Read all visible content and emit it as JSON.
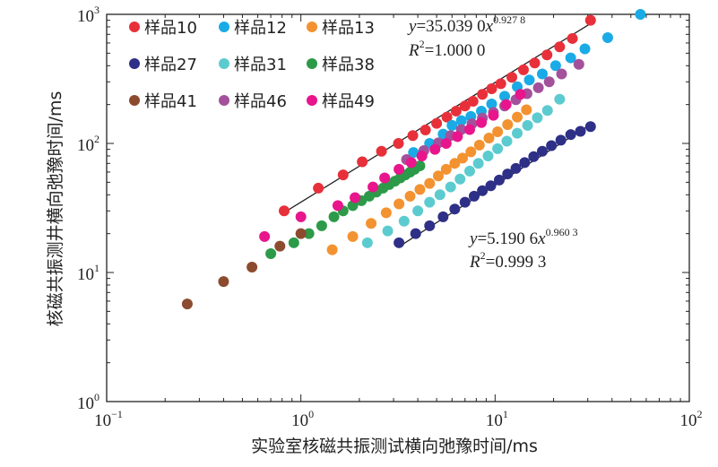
{
  "chart_data": {
    "type": "scatter",
    "xscale": "log",
    "yscale": "log",
    "xlim": [
      0.1,
      100
    ],
    "ylim": [
      1,
      1000
    ],
    "xlabel": "实验室核磁共振测试横向弛豫时间/ms",
    "ylabel": "核磁共振测井横向弛豫时间/ms",
    "x_ticks": [
      {
        "value": 0.1,
        "base": "10",
        "exp": "−1"
      },
      {
        "value": 1,
        "base": "10",
        "exp": "0"
      },
      {
        "value": 10,
        "base": "10",
        "exp": "1"
      },
      {
        "value": 100,
        "base": "10",
        "exp": "2"
      }
    ],
    "y_ticks": [
      {
        "value": 1,
        "base": "10",
        "exp": "0"
      },
      {
        "value": 10,
        "base": "10",
        "exp": "1"
      },
      {
        "value": 100,
        "base": "10",
        "exp": "2"
      },
      {
        "value": 1000,
        "base": "10",
        "exp": "3"
      }
    ],
    "legend": {
      "position": "top-left"
    },
    "series": [
      {
        "name": "样品10",
        "color": "#e8303a",
        "x": [
          0.82,
          1.23,
          1.65,
          2.07,
          2.6,
          3.18,
          3.77,
          4.38,
          5.0,
          5.65,
          6.3,
          7.0,
          7.7,
          8.6,
          9.6,
          10.7,
          12.2,
          14.0,
          16.0,
          18.5,
          21.5,
          25.0,
          31.0
        ],
        "y": [
          30,
          45,
          57,
          72,
          87,
          100,
          115,
          127,
          143,
          160,
          178,
          195,
          212,
          240,
          265,
          290,
          325,
          372,
          420,
          485,
          560,
          650,
          900
        ]
      },
      {
        "name": "样品12",
        "color": "#1aabe6",
        "x": [
          3.8,
          4.6,
          5.4,
          6.0,
          6.7,
          7.5,
          8.5,
          9.6,
          11.2,
          13.0,
          15.0,
          17.5,
          20.5,
          24.5,
          29.0,
          38.0,
          56.0
        ],
        "y": [
          85,
          100,
          118,
          138,
          150,
          162,
          178,
          202,
          232,
          275,
          310,
          345,
          400,
          460,
          540,
          660,
          1000
        ]
      },
      {
        "name": "样品13",
        "color": "#f39230",
        "x": [
          1.45,
          1.85,
          2.3,
          2.75,
          3.2,
          3.65,
          4.1,
          4.6,
          5.1,
          5.6,
          6.2,
          6.8,
          7.5,
          8.3,
          9.3,
          10.3,
          11.6,
          13.0,
          14.5
        ],
        "y": [
          15,
          19,
          24,
          29,
          34,
          39,
          44,
          49,
          56,
          63,
          70,
          77,
          86,
          97,
          110,
          123,
          140,
          160,
          182
        ]
      },
      {
        "name": "样品27",
        "color": "#2e2f86",
        "x": [
          3.2,
          3.9,
          4.6,
          5.4,
          6.2,
          7.0,
          7.8,
          8.6,
          9.5,
          10.5,
          11.6,
          12.8,
          14.2,
          15.8,
          17.5,
          19.5,
          21.8,
          24.5,
          27.5,
          31.0
        ],
        "y": [
          17,
          20,
          23,
          27,
          31,
          35,
          39,
          43,
          47,
          52,
          58,
          64,
          71,
          79,
          87,
          96,
          106,
          117,
          124,
          135
        ]
      },
      {
        "name": "样品31",
        "color": "#5ccbd0",
        "x": [
          2.2,
          2.8,
          3.4,
          4.0,
          4.6,
          5.2,
          5.9,
          6.6,
          7.4,
          8.2,
          9.2,
          10.3,
          11.5,
          13.0,
          14.7,
          16.5,
          18.6,
          21.5
        ],
        "y": [
          17,
          21,
          25,
          30,
          35,
          40,
          46,
          53,
          61,
          70,
          80,
          91,
          104,
          120,
          138,
          158,
          180,
          220
        ]
      },
      {
        "name": "样品38",
        "color": "#2c9a48",
        "x": [
          0.7,
          0.92,
          1.1,
          1.28,
          1.48,
          1.65,
          1.85,
          2.05,
          2.25,
          2.45,
          2.65,
          2.85,
          3.05,
          3.25,
          3.45,
          3.65,
          3.85,
          4.1
        ],
        "y": [
          14,
          17,
          20,
          23,
          27,
          30,
          33,
          36,
          39,
          42,
          45,
          48,
          51,
          54,
          57,
          60,
          63,
          67
        ]
      },
      {
        "name": "样品41",
        "color": "#8c4b2e",
        "x": [
          0.26,
          0.4,
          0.56,
          0.78,
          1.0
        ],
        "y": [
          5.7,
          8.5,
          11,
          16,
          20
        ]
      },
      {
        "name": "样品46",
        "color": "#a3519b",
        "x": [
          3.5,
          4.3,
          5.1,
          5.9,
          6.7,
          7.6,
          8.6,
          9.8,
          11.2,
          12.8,
          14.6,
          16.7,
          19.0,
          22.0,
          27.0
        ],
        "y": [
          75,
          88,
          101,
          115,
          128,
          142,
          157,
          174,
          195,
          218,
          243,
          270,
          300,
          345,
          410
        ]
      },
      {
        "name": "样品49",
        "color": "#e8158c",
        "x": [
          0.65,
          1.0,
          1.55,
          1.9,
          2.35,
          2.7,
          3.2,
          3.7,
          4.2,
          4.9,
          5.6,
          6.4,
          7.4,
          8.5,
          9.8,
          11.4,
          13.5
        ],
        "y": [
          19,
          27,
          33,
          38,
          46,
          54,
          63,
          71,
          80,
          90,
          100,
          113,
          128,
          145,
          165,
          200,
          240
        ]
      }
    ],
    "fits": [
      {
        "coef": "35.039 0",
        "exp": "0.927 8",
        "r2": "1.000 0",
        "x_range": [
          0.82,
          31
        ]
      },
      {
        "coef": "5.190 6",
        "exp": "0.960 3",
        "r2": "0.999 3",
        "x_range": [
          3.2,
          31
        ]
      }
    ]
  }
}
